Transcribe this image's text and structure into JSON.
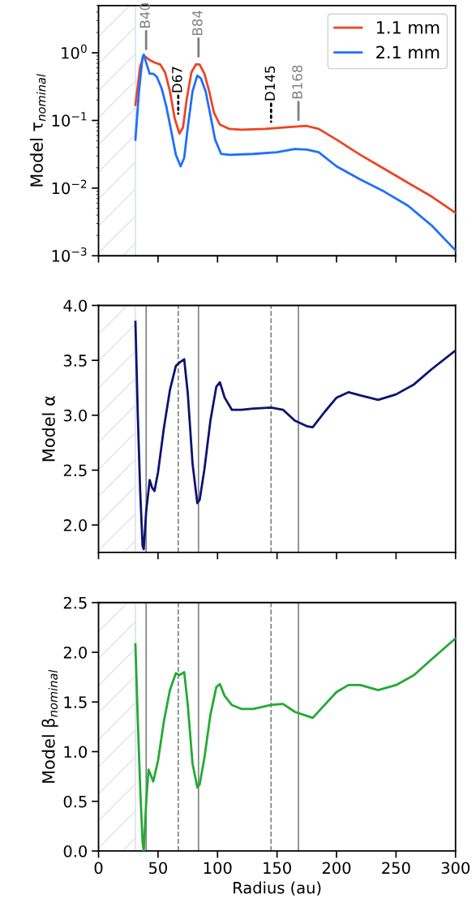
{
  "chart_data": [
    {
      "type": "line",
      "ylabel": "Model τ$_{nominal}$",
      "log": "y",
      "xlim": [
        0,
        300
      ],
      "xticks": [
        0,
        50,
        100,
        150,
        200,
        250,
        300
      ],
      "ylim": [
        0.001,
        5
      ],
      "yticks": [
        {
          "value": 0.001,
          "label": "10$^{−3}$"
        },
        {
          "value": 0.01,
          "label": "10$^{−2}$"
        },
        {
          "value": 0.1,
          "label": "10$^{−1}$"
        },
        {
          "value": 1,
          "label": "10$^{0}$"
        }
      ],
      "tick_labels": "y",
      "legend": "top right",
      "grid": false,
      "bands": [
        {
          "axis": "x",
          "from": 0,
          "to": 31,
          "color": "#dde3ee"
        }
      ],
      "annotations": [
        {
          "text": "B40",
          "x": 40,
          "y": 0.9
        },
        {
          "text": "D67",
          "x": 67,
          "y": 0.1
        },
        {
          "text": "B84",
          "x": 84,
          "y": 0.7
        },
        {
          "text": "D145",
          "x": 145,
          "y": 0.076
        },
        {
          "text": "B168",
          "x": 168,
          "y": 0.081
        }
      ],
      "ref_lines": [
        {
          "axis": "x",
          "value": 31,
          "color": "#dde3ee",
          "line_style": "solid"
        }
      ],
      "series": [
        {
          "name": "1.1 mm",
          "color": "#ee4422",
          "x": [
            31,
            35,
            38,
            40,
            43,
            47,
            52,
            56,
            60,
            64,
            68,
            71,
            74,
            78,
            82,
            85,
            89,
            93,
            97,
            102,
            110,
            120,
            140,
            160,
            175,
            185,
            200,
            220,
            240,
            260,
            280,
            300
          ],
          "values": [
            0.17,
            0.63,
            0.91,
            0.86,
            0.78,
            0.72,
            0.67,
            0.51,
            0.27,
            0.107,
            0.064,
            0.079,
            0.2,
            0.51,
            0.68,
            0.67,
            0.49,
            0.27,
            0.13,
            0.087,
            0.075,
            0.073,
            0.075,
            0.08,
            0.083,
            0.075,
            0.052,
            0.031,
            0.0193,
            0.012,
            0.0075,
            0.0043
          ]
        },
        {
          "name": "2.1 mm",
          "color": "#1f6fff",
          "x": [
            31,
            34,
            37,
            38,
            41,
            43,
            46,
            49,
            53,
            57,
            61,
            65,
            69,
            72,
            75,
            79,
            83,
            86,
            90,
            94,
            98,
            103,
            110,
            130,
            150,
            165,
            175,
            185,
            200,
            220,
            240,
            260,
            280,
            300
          ],
          "values": [
            0.052,
            0.27,
            0.86,
            0.94,
            0.63,
            0.49,
            0.49,
            0.44,
            0.3,
            0.16,
            0.071,
            0.031,
            0.021,
            0.028,
            0.079,
            0.27,
            0.46,
            0.42,
            0.27,
            0.12,
            0.052,
            0.032,
            0.031,
            0.032,
            0.034,
            0.038,
            0.037,
            0.034,
            0.021,
            0.0134,
            0.0089,
            0.0055,
            0.0028,
            0.0012
          ]
        }
      ]
    },
    {
      "type": "line",
      "ylabel": "Model α",
      "xlim": [
        0,
        300
      ],
      "xticks": [
        0,
        50,
        100,
        150,
        200,
        250,
        300
      ],
      "ylim": [
        1.75,
        4.0
      ],
      "yticks": [
        {
          "value": 2,
          "label": "2.0"
        },
        2.5,
        {
          "value": 3,
          "label": "3.0"
        },
        3.5,
        {
          "value": 4,
          "label": "4.0"
        }
      ],
      "tick_labels": "y",
      "grid": false,
      "bands": [
        {
          "axis": "x",
          "from": 0,
          "to": 31,
          "color": "#dde3ee"
        }
      ],
      "ref_lines": [
        {
          "axis": "x",
          "value": 31,
          "color": "#dde3ee",
          "line_style": "solid"
        },
        {
          "axis": "x",
          "value": 40,
          "color": "#808080",
          "line_style": "solid"
        },
        {
          "axis": "x",
          "value": 67,
          "color": "#808080",
          "line_style": "dashed"
        },
        {
          "axis": "x",
          "value": 84,
          "color": "#808080",
          "line_style": "solid"
        },
        {
          "axis": "x",
          "value": 145,
          "color": "#808080",
          "line_style": "dashed"
        },
        {
          "axis": "x",
          "value": 168,
          "color": "#808080",
          "line_style": "solid"
        }
      ],
      "series": [
        {
          "color": "#0d1273",
          "x": [
            31,
            33,
            35,
            37,
            38,
            40,
            43,
            45,
            47,
            50,
            55,
            60,
            65,
            68,
            72,
            75,
            79,
            83,
            85,
            89,
            94,
            99,
            102,
            106,
            112,
            120,
            130,
            145,
            155,
            165,
            175,
            180,
            190,
            200,
            210,
            220,
            235,
            250,
            265,
            280,
            300
          ],
          "values": [
            3.85,
            3.0,
            2.31,
            1.81,
            1.78,
            2.12,
            2.41,
            2.34,
            2.31,
            2.48,
            2.89,
            3.23,
            3.45,
            3.48,
            3.51,
            3.2,
            2.56,
            2.2,
            2.23,
            2.51,
            2.95,
            3.26,
            3.3,
            3.16,
            3.05,
            3.05,
            3.06,
            3.07,
            3.05,
            2.95,
            2.9,
            2.89,
            3.03,
            3.16,
            3.21,
            3.18,
            3.14,
            3.19,
            3.28,
            3.42,
            3.59
          ]
        }
      ]
    },
    {
      "type": "line",
      "ylabel": "Model β$_{nominal}$",
      "xlabel": "Radius (au)",
      "xlim": [
        0,
        300
      ],
      "xticks": [
        0,
        50,
        100,
        150,
        200,
        250,
        300
      ],
      "ylim": [
        0.0,
        2.5
      ],
      "yticks": [
        {
          "value": 0,
          "label": "0.0"
        },
        0.5,
        {
          "value": 1,
          "label": "1.0"
        },
        1.5,
        {
          "value": 2,
          "label": "2.0"
        },
        2.5
      ],
      "grid": false,
      "bands": [
        {
          "axis": "x",
          "from": 0,
          "to": 31,
          "color": "#dde3ee"
        }
      ],
      "ref_lines": [
        {
          "axis": "x",
          "value": 31,
          "color": "#dde3ee",
          "line_style": "solid"
        },
        {
          "axis": "x",
          "value": 40,
          "color": "#808080",
          "line_style": "solid"
        },
        {
          "axis": "x",
          "value": 67,
          "color": "#808080",
          "line_style": "dashed"
        },
        {
          "axis": "x",
          "value": 84,
          "color": "#808080",
          "line_style": "solid"
        },
        {
          "axis": "x",
          "value": 145,
          "color": "#808080",
          "line_style": "dashed"
        },
        {
          "axis": "x",
          "value": 168,
          "color": "#808080",
          "line_style": "solid"
        }
      ],
      "series": [
        {
          "color": "#22aa33",
          "x": [
            31,
            33,
            35,
            37,
            38,
            40,
            42,
            44,
            46,
            50,
            55,
            60,
            65,
            68,
            72,
            75,
            79,
            83,
            85,
            89,
            94,
            99,
            102,
            106,
            112,
            120,
            130,
            145,
            155,
            165,
            175,
            180,
            190,
            200,
            210,
            220,
            235,
            250,
            265,
            280,
            300
          ],
          "values": [
            2.08,
            1.31,
            0.64,
            0.09,
            0.0,
            0.48,
            0.82,
            0.76,
            0.7,
            0.91,
            1.31,
            1.62,
            1.79,
            1.77,
            1.8,
            1.47,
            0.88,
            0.64,
            0.67,
            0.94,
            1.37,
            1.65,
            1.68,
            1.56,
            1.47,
            1.43,
            1.43,
            1.47,
            1.48,
            1.4,
            1.36,
            1.34,
            1.47,
            1.6,
            1.67,
            1.67,
            1.62,
            1.67,
            1.77,
            1.93,
            2.14
          ]
        }
      ]
    }
  ]
}
